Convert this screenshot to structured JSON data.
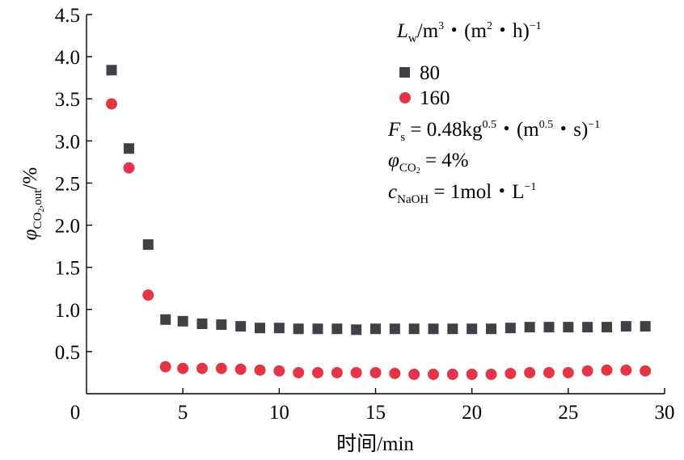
{
  "chart_data": {
    "type": "scatter",
    "xlabel": "时间/min",
    "ylabel": {
      "symbol": "φ",
      "subscript_pre": "CO",
      "subscript_num": "2",
      "subscript_post": ",out",
      "unit": "/%"
    },
    "xlim": [
      0,
      30
    ],
    "ylim": [
      0,
      4.5
    ],
    "x_ticks": [
      "0",
      "5",
      "10",
      "15",
      "20",
      "25",
      "30"
    ],
    "y_ticks": [
      "0.5",
      "1.0",
      "1.5",
      "2.0",
      "2.5",
      "3.0",
      "3.5",
      "4.0",
      "4.5"
    ],
    "x_tick_values": [
      0,
      5,
      10,
      15,
      20,
      25,
      30
    ],
    "y_tick_values": [
      0.5,
      1.0,
      1.5,
      2.0,
      2.5,
      3.0,
      3.5,
      4.0,
      4.5
    ],
    "legend_title": {
      "symbol": "L",
      "subscript": "w",
      "text1": "/m",
      "sup1": "3",
      "text2": "・(m",
      "sup2": "2",
      "text3": "・h)",
      "sup3": "−1"
    },
    "legend_placement": "top-right",
    "grid": false,
    "series": [
      {
        "name": "80",
        "marker": "square",
        "color": "#404047",
        "x": [
          1.3,
          2.2,
          3.2,
          4.1,
          5,
          6,
          7,
          8,
          9,
          10,
          11,
          12,
          13,
          14,
          15,
          16,
          17,
          18,
          19,
          20,
          21,
          22,
          23,
          24,
          25,
          26,
          27,
          28,
          29
        ],
        "y": [
          3.84,
          2.91,
          1.77,
          0.88,
          0.86,
          0.83,
          0.82,
          0.8,
          0.78,
          0.78,
          0.77,
          0.77,
          0.77,
          0.76,
          0.77,
          0.77,
          0.77,
          0.77,
          0.77,
          0.77,
          0.77,
          0.78,
          0.79,
          0.79,
          0.79,
          0.79,
          0.79,
          0.8,
          0.8
        ]
      },
      {
        "name": "160",
        "marker": "circle",
        "color": "#e53445",
        "x": [
          1.3,
          2.2,
          3.2,
          4.1,
          5,
          6,
          7,
          8,
          9,
          10,
          11,
          12,
          13,
          14,
          15,
          16,
          17,
          18,
          19,
          20,
          21,
          22,
          23,
          24,
          25,
          26,
          27,
          28,
          29
        ],
        "y": [
          3.44,
          2.68,
          1.17,
          0.32,
          0.3,
          0.3,
          0.3,
          0.29,
          0.28,
          0.27,
          0.25,
          0.25,
          0.25,
          0.25,
          0.25,
          0.24,
          0.23,
          0.23,
          0.23,
          0.23,
          0.23,
          0.24,
          0.25,
          0.25,
          0.25,
          0.27,
          0.28,
          0.28,
          0.27
        ]
      }
    ],
    "annotations": [
      {
        "symbol": "F",
        "subscript": "s",
        "text1": " = 0.48kg",
        "sup1": "0.5",
        "text2": "・(m",
        "sup2": "0.5",
        "text3": "・s)",
        "sup3": "−1"
      },
      {
        "symbol": "φ",
        "subscript_pre": "CO",
        "subscript_num": "2",
        "text1": " = 4%"
      },
      {
        "symbol": "c",
        "subscript": "NaOH",
        "text1": " = 1mol・L",
        "sup1": "−1"
      }
    ]
  }
}
